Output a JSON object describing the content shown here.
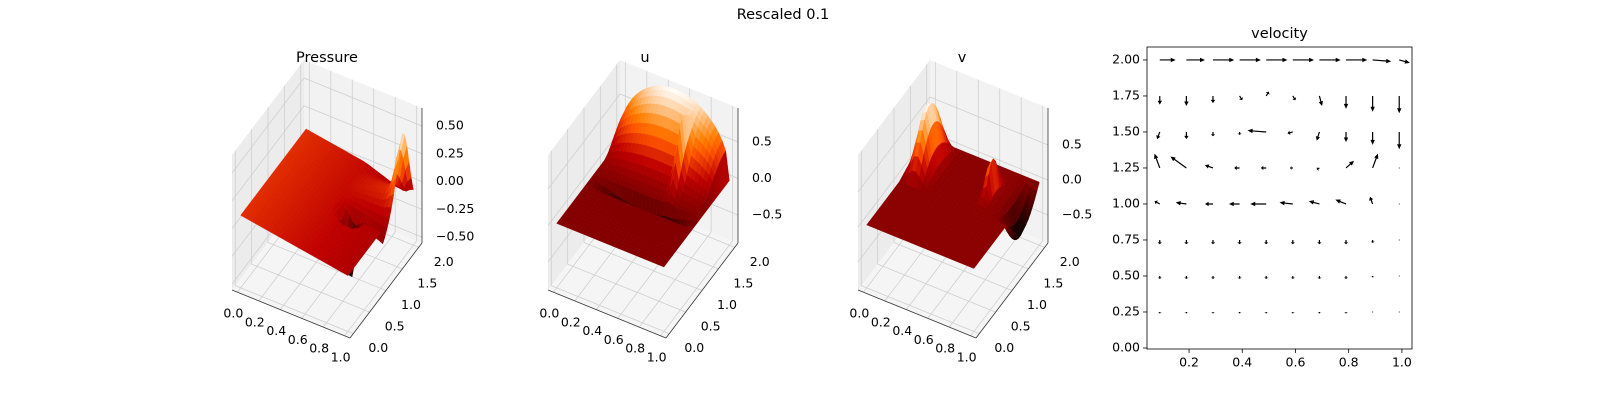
{
  "title": "Rescaled 0.1",
  "chart_data": [
    {
      "type": "surface3d",
      "title": "Pressure",
      "cmap": "gist_heat",
      "surface": "pressure",
      "xlim": [
        -0.05,
        1.05
      ],
      "ylim": [
        -0.1,
        2.1
      ],
      "zlim": [
        -0.553,
        0.662
      ],
      "xticks": [
        {
          "value": 0,
          "label": "0.0"
        },
        0.2,
        0.4,
        0.6,
        0.8,
        {
          "value": 1,
          "label": "1.0"
        }
      ],
      "yticks": [
        {
          "value": 0,
          "label": "0.0"
        },
        0.5,
        {
          "value": 1,
          "label": "1.0"
        },
        1.5,
        {
          "value": 2,
          "label": "2.0"
        }
      ],
      "zticks": [
        {
          "value": -0.5,
          "label": "−0.50"
        },
        {
          "value": -0.25,
          "label": "−0.25"
        },
        {
          "value": 0,
          "label": "0.00"
        },
        {
          "value": 0.25,
          "label": "0.25"
        },
        {
          "value": 0.5,
          "label": "0.50"
        }
      ]
    },
    {
      "type": "surface3d",
      "title": "u",
      "cmap": "gist_heat",
      "surface": "u",
      "xlim": [
        -0.05,
        1.05
      ],
      "ylim": [
        -0.1,
        2.1
      ],
      "zlim": [
        -0.883,
        0.965
      ],
      "xticks": [
        {
          "value": 0,
          "label": "0.0"
        },
        0.2,
        0.4,
        0.6,
        0.8,
        {
          "value": 1,
          "label": "1.0"
        }
      ],
      "yticks": [
        {
          "value": 0,
          "label": "0.0"
        },
        0.5,
        {
          "value": 1,
          "label": "1.0"
        },
        1.5,
        {
          "value": 2,
          "label": "2.0"
        }
      ],
      "zticks": [
        {
          "value": -0.5,
          "label": "−0.5"
        },
        {
          "value": 0,
          "label": "0.0"
        },
        0.5
      ]
    },
    {
      "type": "surface3d",
      "title": "v",
      "cmap": "gist_heat",
      "surface": "v",
      "xlim": [
        -0.05,
        1.05
      ],
      "ylim": [
        -0.1,
        2.1
      ],
      "zlim": [
        -0.899,
        1.028
      ],
      "xticks": [
        {
          "value": 0,
          "label": "0.0"
        },
        0.2,
        0.4,
        0.6,
        0.8,
        {
          "value": 1,
          "label": "1.0"
        }
      ],
      "yticks": [
        {
          "value": 0,
          "label": "0.0"
        },
        0.5,
        {
          "value": 1,
          "label": "1.0"
        },
        1.5,
        {
          "value": 2,
          "label": "2.0"
        }
      ],
      "zticks": [
        {
          "value": -0.5,
          "label": "−0.5"
        },
        {
          "value": 0,
          "label": "0.0"
        },
        0.5
      ]
    },
    {
      "type": "quiver",
      "title": "velocity",
      "color": "#000000",
      "xlim": [
        0.042,
        1.038
      ],
      "ylim": [
        -0.007,
        2.09
      ],
      "xticks": [
        0.2,
        0.4,
        0.6,
        0.8,
        {
          "value": 1,
          "label": "1.0"
        }
      ],
      "yticks": [
        {
          "value": 0,
          "label": "0.00"
        },
        {
          "value": 0.25,
          "label": "0.25"
        },
        {
          "value": 0.5,
          "label": "0.50"
        },
        {
          "value": 0.75,
          "label": "0.75"
        },
        {
          "value": 1,
          "label": "1.00"
        },
        {
          "value": 1.25,
          "label": "1.25"
        },
        {
          "value": 1.5,
          "label": "1.50"
        },
        {
          "value": 1.75,
          "label": "1.75"
        },
        {
          "value": 2,
          "label": "2.00"
        }
      ],
      "x": [
        0.09,
        0.19,
        0.29,
        0.39,
        0.49,
        0.59,
        0.69,
        0.79,
        0.89,
        0.99,
        0.09,
        0.19,
        0.29,
        0.39,
        0.49,
        0.59,
        0.69,
        0.79,
        0.89,
        0.99,
        0.09,
        0.19,
        0.29,
        0.39,
        0.49,
        0.59,
        0.69,
        0.79,
        0.89,
        0.99,
        0.09,
        0.19,
        0.29,
        0.39,
        0.49,
        0.59,
        0.69,
        0.79,
        0.89,
        0.99,
        0.09,
        0.19,
        0.29,
        0.39,
        0.49,
        0.59,
        0.69,
        0.79,
        0.89,
        0.99,
        0.09,
        0.19,
        0.29,
        0.39,
        0.49,
        0.59,
        0.69,
        0.79,
        0.89,
        0.99,
        0.09,
        0.19,
        0.29,
        0.39,
        0.49,
        0.59,
        0.69,
        0.79,
        0.89,
        0.99,
        0.09,
        0.19,
        0.29,
        0.39,
        0.49,
        0.59,
        0.69,
        0.79,
        0.89,
        0.99
      ],
      "y": [
        2,
        2,
        2,
        2,
        2,
        2,
        2,
        2,
        2,
        2,
        1.75,
        1.75,
        1.75,
        1.75,
        1.75,
        1.75,
        1.75,
        1.75,
        1.75,
        1.75,
        1.5,
        1.5,
        1.5,
        1.5,
        1.5,
        1.5,
        1.5,
        1.5,
        1.5,
        1.5,
        1.25,
        1.25,
        1.25,
        1.25,
        1.25,
        1.25,
        1.25,
        1.25,
        1.25,
        1.25,
        1,
        1,
        1,
        1,
        1,
        1,
        1,
        1,
        1,
        1,
        0.75,
        0.75,
        0.75,
        0.75,
        0.75,
        0.75,
        0.75,
        0.75,
        0.75,
        0.75,
        0.5,
        0.5,
        0.5,
        0.5,
        0.5,
        0.5,
        0.5,
        0.5,
        0.5,
        0.5,
        0.25,
        0.25,
        0.25,
        0.25,
        0.25,
        0.25,
        0.25,
        0.25,
        0.25,
        0.25
      ],
      "u": [
        0.06,
        0.07,
        0.08,
        0.08,
        0.08,
        0.08,
        0.08,
        0.08,
        0.07,
        0.04,
        0,
        0,
        0,
        0.01,
        0.01,
        0.01,
        0.01,
        0,
        0,
        0,
        -0.01,
        0,
        0,
        0,
        -0.07,
        -0.02,
        -0.01,
        0,
        0,
        0,
        -0.02,
        -0.06,
        -0.03,
        -0.02,
        -0.02,
        -0.01,
        -0.01,
        0.03,
        0.02,
        0,
        -0.02,
        -0.04,
        -0.03,
        -0.04,
        -0.06,
        -0.05,
        -0.04,
        -0.04,
        -0.01,
        0,
        0,
        0,
        0,
        0,
        0,
        0,
        0,
        0,
        0,
        0,
        0,
        0,
        0,
        0,
        0,
        0,
        0,
        0,
        0,
        0,
        0,
        0,
        0,
        0,
        0,
        0,
        0,
        0,
        0,
        0
      ],
      "v": [
        0,
        0,
        0,
        0,
        0,
        0,
        0,
        0,
        -0.01,
        -0.02,
        -0.06,
        -0.07,
        -0.05,
        -0.03,
        0.03,
        -0.03,
        -0.07,
        -0.09,
        -0.11,
        -0.12,
        -0.05,
        -0.05,
        -0.03,
        -0.02,
        0.01,
        -0.01,
        -0.06,
        -0.07,
        -0.09,
        -0.12,
        0.1,
        0.08,
        0.02,
        0,
        0,
        0,
        -0.01,
        0.05,
        0.1,
        0,
        0.02,
        0.01,
        0,
        0,
        0,
        0.01,
        0.02,
        0.03,
        0.05,
        0,
        -0.03,
        -0.03,
        -0.03,
        -0.03,
        -0.03,
        -0.03,
        -0.03,
        -0.03,
        -0.02,
        0,
        -0.02,
        -0.02,
        -0.02,
        -0.02,
        -0.02,
        -0.02,
        -0.02,
        -0.02,
        -0.01,
        0,
        -0.01,
        -0.01,
        -0.01,
        -0.01,
        -0.01,
        -0.01,
        -0.01,
        -0.01,
        -0.005,
        0
      ]
    }
  ]
}
